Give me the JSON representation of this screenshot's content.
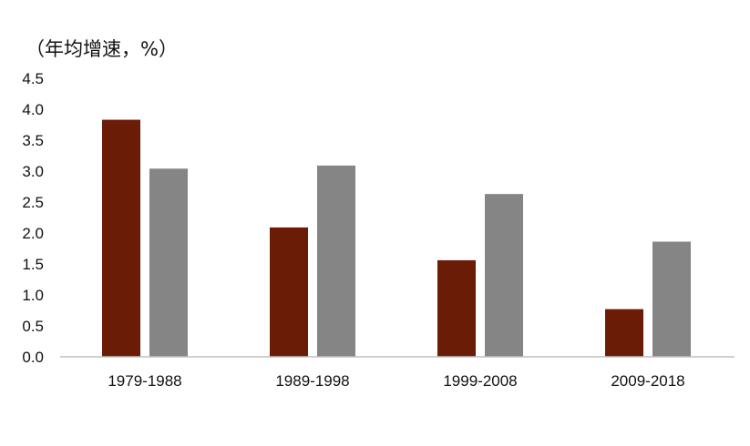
{
  "chart_data": {
    "type": "bar",
    "title": "",
    "ylabel": "（年均增速，%）",
    "xlabel": "",
    "categories": [
      "1979-1988",
      "1989-1998",
      "1999-2008",
      "2009-2018"
    ],
    "series": [
      {
        "color": "#6b1c06",
        "values": [
          3.83,
          2.09,
          1.56,
          0.77
        ]
      },
      {
        "color": "#858585",
        "values": [
          3.04,
          3.09,
          2.63,
          1.86
        ]
      }
    ],
    "ylim": [
      0,
      4.5
    ],
    "yticks": [
      "0.0",
      "0.5",
      "1.0",
      "1.5",
      "2.0",
      "2.5",
      "3.0",
      "3.5",
      "4.0",
      "4.5"
    ],
    "grid": false,
    "legend": "none"
  }
}
